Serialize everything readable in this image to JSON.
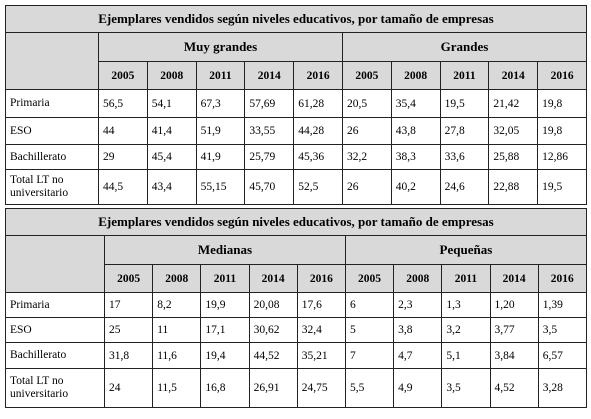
{
  "tables": [
    {
      "title": "Ejemplares vendidos según niveles educativos, por tamaño de empresas",
      "groups": [
        "Muy grandes",
        "Grandes"
      ],
      "years": [
        "2005",
        "2008",
        "2011",
        "2014",
        "2016"
      ],
      "rows": [
        {
          "label": "Primaria",
          "values": [
            "56,5",
            "54,1",
            "67,3",
            "57,69",
            "61,28",
            "20,5",
            "35,4",
            "19,5",
            "21,42",
            "19,8"
          ]
        },
        {
          "label": "ESO",
          "values": [
            "44",
            "41,4",
            "51,9",
            "33,55",
            "44,28",
            "26",
            "43,8",
            "27,8",
            "32,05",
            "19,8"
          ]
        },
        {
          "label": "Bachillerato",
          "values": [
            "29",
            "45,4",
            "41,9",
            "25,79",
            "45,36",
            "32,2",
            "38,3",
            "33,6",
            "25,88",
            "12,86"
          ]
        },
        {
          "label": "Total LT no universitario",
          "values": [
            "44,5",
            "43,4",
            "55,15",
            "45,70",
            "52,5",
            "26",
            "40,2",
            "24,6",
            "22,88",
            "19,5"
          ]
        }
      ]
    },
    {
      "title": "Ejemplares vendidos según niveles educativos, por tamaño de empresas",
      "groups": [
        "Medianas",
        "Pequeñas"
      ],
      "years": [
        "2005",
        "2008",
        "2011",
        "2014",
        "2016"
      ],
      "rows": [
        {
          "label": "Primaria",
          "values": [
            "17",
            "8,2",
            "19,9",
            "20,08",
            "17,6",
            "6",
            "2,3",
            "1,3",
            "1,20",
            "1,39"
          ]
        },
        {
          "label": "ESO",
          "values": [
            "25",
            "11",
            "17,1",
            "30,62",
            "32,4",
            "5",
            "3,8",
            "3,2",
            "3,77",
            "3,5"
          ]
        },
        {
          "label": "Bachillerato",
          "values": [
            "31,8",
            "11,6",
            "19,4",
            "44,52",
            "35,21",
            "7",
            "4,7",
            "5,1",
            "3,84",
            "6,57"
          ]
        },
        {
          "label": "Total LT no universitario",
          "values": [
            "24",
            "11,5",
            "16,8",
            "26,91",
            "24,75",
            "5,5",
            "4,9",
            "3,5",
            "4,52",
            "3,28"
          ]
        }
      ]
    }
  ]
}
